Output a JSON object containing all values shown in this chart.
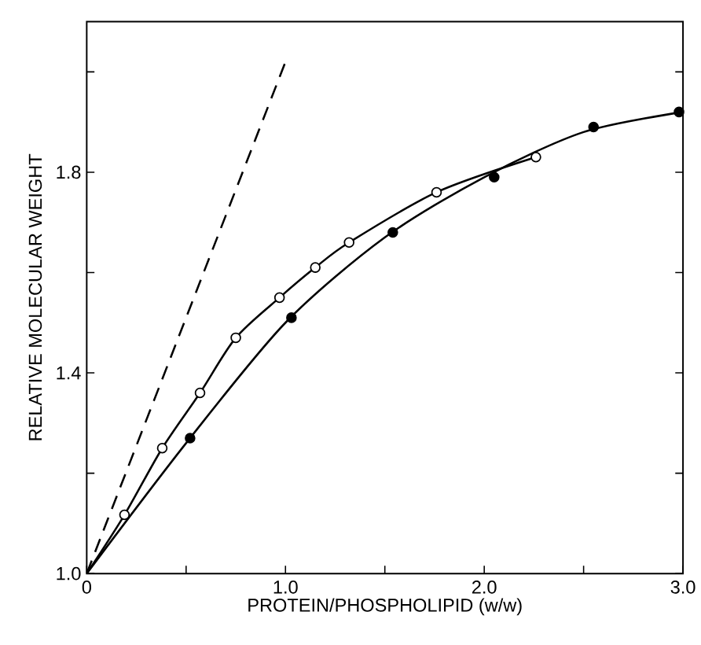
{
  "chart_data": {
    "type": "scatter",
    "xlabel": "PROTEIN/PHOSPHOLIPID  (w/w)",
    "ylabel": "RELATIVE MOLECULAR WEIGHT",
    "xlim": [
      0,
      3.0
    ],
    "ylim": [
      1.0,
      2.1
    ],
    "xticks": [
      0,
      {
        "value": 0.5,
        "label": null
      },
      {
        "value": 1.0,
        "label": "1.0"
      },
      {
        "value": 1.5,
        "label": null
      },
      {
        "value": 2.0,
        "label": "2.0"
      },
      {
        "value": 2.5,
        "label": null
      },
      {
        "value": 3.0,
        "label": "3.0"
      }
    ],
    "yticks": [
      {
        "value": 1.0,
        "label": "1.0"
      },
      {
        "value": 1.2,
        "label": null
      },
      {
        "value": 1.4,
        "label": "1.4"
      },
      {
        "value": 1.6,
        "label": null
      },
      {
        "value": 1.8,
        "label": "1.8"
      },
      {
        "value": 2.0,
        "label": null
      }
    ],
    "series": [
      {
        "type": "line",
        "color": "#000000",
        "line_style": "dashed",
        "marker": "none",
        "x": [
          0,
          1.0
        ],
        "values": [
          1.0,
          2.02
        ]
      },
      {
        "type": "line",
        "color": "#000000",
        "line_style": "solid",
        "marker": "none",
        "x": [
          0,
          0.19,
          0.38,
          0.57,
          0.75,
          0.97,
          1.15,
          1.32,
          1.76,
          2.26
        ],
        "values": [
          1.0,
          1.117,
          1.25,
          1.36,
          1.47,
          1.55,
          1.61,
          1.66,
          1.76,
          1.83
        ]
      },
      {
        "type": "line",
        "color": "#000000",
        "line_style": "solid",
        "marker": "none",
        "x": [
          0,
          0.5,
          1.0,
          1.5,
          2.0,
          2.5,
          3.0
        ],
        "values": [
          1.0,
          1.26,
          1.5,
          1.67,
          1.79,
          1.88,
          1.92
        ]
      },
      {
        "color": "#ffffff",
        "marker": "circle",
        "x": [
          0.19,
          0.38,
          0.57,
          0.75,
          0.97,
          1.15,
          1.32,
          1.76,
          2.26
        ],
        "values": [
          1.117,
          1.25,
          1.36,
          1.47,
          1.55,
          1.61,
          1.66,
          1.76,
          1.83
        ]
      },
      {
        "color": "#000000",
        "marker": "circle",
        "x": [
          0.52,
          1.03,
          1.54,
          2.05,
          2.55,
          2.98
        ],
        "values": [
          1.27,
          1.51,
          1.68,
          1.79,
          1.89,
          1.92
        ]
      }
    ]
  }
}
